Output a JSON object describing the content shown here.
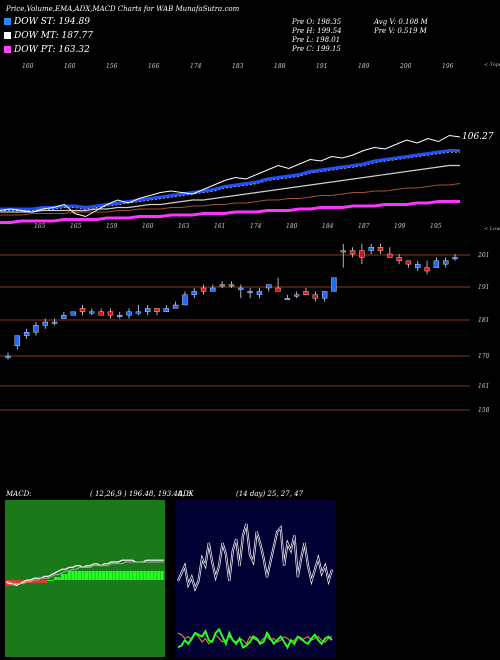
{
  "header": {
    "title": "Price,Volume,EMA,ADX,MACD Charts for WAB MunafaSutra.com",
    "ohlc": {
      "open": "Pre  O: 198.35",
      "high": "Pre  H: 199.54",
      "low": "Pre  L: 198.01",
      "close": "Pre  C: 199.15"
    },
    "avg_volume": "Avg V: 0.108  M",
    "prev_volume": "Pre  V: 0.519 M"
  },
  "legend": [
    {
      "label": "DOW ST: 194.89",
      "color": "#1e90ff"
    },
    {
      "label": "DOW MT: 187.77",
      "color": "#ffffff"
    },
    {
      "label": "DOW PT: 163.32",
      "color": "#ff44ff"
    }
  ],
  "colors": {
    "up": "#1e6cff",
    "down": "#e81010",
    "ema_short": "#1e50ff",
    "ema_long": "#ff33ff",
    "hline": "#8b3a1a",
    "macd_bg": "#1a7a1a",
    "adx_bg": "#000033"
  },
  "chart_data": [
    {
      "type": "line",
      "name": "ema-panel",
      "top_axis_label": "< Tops",
      "bottom_axis_label": "< Lows",
      "last_value_label": "106.27",
      "top_labels": [
        "160",
        "160",
        "156",
        "166",
        "174",
        "183",
        "188",
        "191",
        "189",
        "200",
        "196"
      ],
      "bottom_labels": [
        "165",
        "165",
        "159",
        "160",
        "163",
        "161",
        "174",
        "180",
        "184",
        "187",
        "199",
        "195"
      ],
      "series": [
        {
          "values": [
            178,
            179,
            178,
            177,
            179,
            180,
            182,
            176,
            174,
            178,
            182,
            185,
            183,
            186,
            188,
            190,
            191,
            190,
            189,
            192,
            195,
            198,
            200,
            199,
            202,
            205,
            208,
            206,
            209,
            212,
            211,
            214,
            213,
            215,
            218,
            220,
            219,
            222,
            225,
            223,
            226,
            224,
            228,
            227
          ]
        },
        {
          "values": [
            178,
            178,
            178,
            178,
            179,
            179,
            180,
            180,
            179,
            180,
            181,
            182,
            183,
            184,
            185,
            186,
            187,
            188,
            189,
            190,
            191,
            193,
            194,
            195,
            196,
            198,
            199,
            200,
            201,
            203,
            204,
            205,
            206,
            207,
            208,
            210,
            211,
            212,
            213,
            214,
            215,
            216,
            217,
            217
          ]
        },
        {
          "values": [
            177,
            177,
            177,
            177,
            178,
            178,
            178,
            178,
            178,
            179,
            179,
            180,
            180,
            181,
            182,
            182,
            183,
            184,
            185,
            185,
            186,
            187,
            188,
            189,
            190,
            191,
            192,
            193,
            194,
            195,
            196,
            197,
            198,
            199,
            200,
            201,
            202,
            203,
            204,
            205,
            206,
            207,
            208,
            208
          ]
        },
        {
          "values": [
            175,
            175,
            175,
            176,
            176,
            176,
            176,
            177,
            177,
            177,
            177,
            178,
            178,
            179,
            179,
            179,
            180,
            180,
            181,
            181,
            182,
            182,
            183,
            183,
            184,
            185,
            185,
            186,
            186,
            187,
            188,
            188,
            189,
            190,
            190,
            191,
            191,
            192,
            193,
            193,
            194,
            195,
            195,
            196
          ]
        },
        {
          "values": [
            170,
            170,
            171,
            171,
            171,
            171,
            172,
            172,
            172,
            172,
            173,
            173,
            173,
            174,
            174,
            174,
            175,
            175,
            175,
            176,
            176,
            176,
            177,
            177,
            177,
            178,
            178,
            178,
            179,
            179,
            180,
            180,
            180,
            181,
            181,
            181,
            182,
            182,
            182,
            183,
            183,
            184,
            184,
            184
          ]
        }
      ]
    },
    {
      "type": "candlestick",
      "name": "price-panel",
      "y_tick_labels": [
        "201",
        "191",
        "181",
        "170",
        "161",
        "158"
      ],
      "candles": [
        {
          "o": 170,
          "h": 171,
          "l": 169,
          "c": 170
        },
        {
          "o": 173,
          "h": 176,
          "l": 172,
          "c": 176
        },
        {
          "o": 176,
          "h": 178,
          "l": 175,
          "c": 177
        },
        {
          "o": 177,
          "h": 180,
          "l": 176,
          "c": 179
        },
        {
          "o": 179,
          "h": 181,
          "l": 178,
          "c": 180
        },
        {
          "o": 180,
          "h": 181,
          "l": 179,
          "c": 180
        },
        {
          "o": 181,
          "h": 183,
          "l": 181,
          "c": 182
        },
        {
          "o": 182,
          "h": 183,
          "l": 182,
          "c": 183
        },
        {
          "o": 184,
          "h": 185,
          "l": 182,
          "c": 183
        },
        {
          "o": 183,
          "h": 184,
          "l": 182,
          "c": 183
        },
        {
          "o": 183,
          "h": 184,
          "l": 182,
          "c": 182
        },
        {
          "o": 183,
          "h": 184,
          "l": 181,
          "c": 182
        },
        {
          "o": 182,
          "h": 183,
          "l": 181,
          "c": 182
        },
        {
          "o": 182,
          "h": 184,
          "l": 181,
          "c": 183
        },
        {
          "o": 183,
          "h": 185,
          "l": 182,
          "c": 183
        },
        {
          "o": 183,
          "h": 185,
          "l": 182,
          "c": 184
        },
        {
          "o": 184,
          "h": 184,
          "l": 182,
          "c": 183
        },
        {
          "o": 183,
          "h": 185,
          "l": 183,
          "c": 184
        },
        {
          "o": 184,
          "h": 186,
          "l": 184,
          "c": 185
        },
        {
          "o": 185,
          "h": 189,
          "l": 185,
          "c": 188
        },
        {
          "o": 188,
          "h": 190,
          "l": 187,
          "c": 189
        },
        {
          "o": 190,
          "h": 191,
          "l": 188,
          "c": 189
        },
        {
          "o": 189,
          "h": 191,
          "l": 189,
          "c": 190
        },
        {
          "o": 191,
          "h": 192,
          "l": 190,
          "c": 191
        },
        {
          "o": 191,
          "h": 192,
          "l": 190,
          "c": 191
        },
        {
          "o": 190,
          "h": 191,
          "l": 187,
          "c": 190
        },
        {
          "o": 189,
          "h": 190,
          "l": 187,
          "c": 189
        },
        {
          "o": 188,
          "h": 190,
          "l": 187,
          "c": 189
        },
        {
          "o": 190,
          "h": 191,
          "l": 189,
          "c": 191
        },
        {
          "o": 190,
          "h": 193,
          "l": 189,
          "c": 189
        },
        {
          "o": 187,
          "h": 188,
          "l": 187,
          "c": 187
        },
        {
          "o": 188,
          "h": 189,
          "l": 187,
          "c": 188
        },
        {
          "o": 189,
          "h": 190,
          "l": 188,
          "c": 188
        },
        {
          "o": 188,
          "h": 189,
          "l": 186,
          "c": 187
        },
        {
          "o": 187,
          "h": 189,
          "l": 186,
          "c": 189
        },
        {
          "o": 189,
          "h": 193,
          "l": 189,
          "c": 193
        },
        {
          "o": 201,
          "h": 203,
          "l": 196,
          "c": 201
        },
        {
          "o": 201,
          "h": 202,
          "l": 199,
          "c": 200
        },
        {
          "o": 201,
          "h": 203,
          "l": 197,
          "c": 199
        },
        {
          "o": 201,
          "h": 203,
          "l": 200,
          "c": 202
        },
        {
          "o": 202,
          "h": 203,
          "l": 200,
          "c": 201
        },
        {
          "o": 200,
          "h": 202,
          "l": 199,
          "c": 199
        },
        {
          "o": 199,
          "h": 200,
          "l": 197,
          "c": 198
        },
        {
          "o": 198,
          "h": 198,
          "l": 196,
          "c": 197
        },
        {
          "o": 196,
          "h": 198,
          "l": 195,
          "c": 197
        },
        {
          "o": 196,
          "h": 198,
          "l": 194,
          "c": 195
        },
        {
          "o": 196,
          "h": 199,
          "l": 196,
          "c": 198
        },
        {
          "o": 197,
          "h": 199,
          "l": 196,
          "c": 198
        },
        {
          "o": 199,
          "h": 200,
          "l": 198,
          "c": 199
        }
      ]
    },
    {
      "type": "bar",
      "name": "macd-panel",
      "label": "MACD:",
      "values_text": "( 12,26,9 ) 196.48, 193.48, 3",
      "histogram": [
        -2,
        -2,
        -2,
        -1,
        -1,
        -1,
        -1,
        -1,
        -1,
        -1,
        -1,
        -1,
        0,
        0,
        1,
        1,
        2,
        2,
        3,
        3,
        3,
        3,
        3,
        3,
        3,
        3,
        3,
        3,
        3,
        3,
        3,
        3,
        3,
        3,
        3,
        3,
        3,
        3,
        3,
        3,
        3,
        3,
        3,
        3,
        3,
        3
      ],
      "series": [
        {
          "values": [
            -1,
            -2,
            -2,
            -3,
            -2,
            -1,
            0,
            0,
            1,
            1,
            1,
            2,
            2,
            3,
            4,
            5,
            6,
            6,
            7,
            7,
            8,
            8,
            7,
            8,
            8,
            9,
            9,
            8,
            9,
            9,
            10,
            10,
            10,
            11,
            11,
            11,
            11,
            10,
            10,
            10,
            11,
            11,
            11,
            11,
            11,
            11
          ]
        },
        {
          "values": [
            -1,
            -1,
            -2,
            -2,
            -2,
            -2,
            -1,
            -1,
            0,
            0,
            1,
            1,
            1,
            2,
            3,
            3,
            4,
            5,
            5,
            6,
            6,
            7,
            7,
            7,
            7,
            8,
            8,
            8,
            8,
            8,
            9,
            9,
            9,
            9,
            10,
            10,
            10,
            10,
            10,
            10,
            10,
            10,
            10,
            10,
            10,
            10
          ]
        }
      ]
    },
    {
      "type": "line",
      "name": "adx-panel",
      "label": "ADX",
      "values_text": "(14  day) 25,  27,  47",
      "series": [
        {
          "values": [
            10,
            14,
            18,
            8,
            12,
            6,
            10,
            22,
            18,
            30,
            20,
            12,
            18,
            30,
            24,
            10,
            26,
            32,
            18,
            34,
            40,
            24,
            20,
            36,
            30,
            22,
            12,
            20,
            28,
            36,
            38,
            18,
            30,
            26,
            34,
            12,
            22,
            30,
            18,
            10,
            16,
            22,
            14,
            18,
            10,
            16
          ]
        },
        {
          "values": [
            30,
            28,
            24,
            26,
            22,
            30,
            26,
            20,
            24,
            18,
            22,
            28,
            24,
            20,
            22,
            26,
            22,
            20,
            24,
            22,
            18,
            26,
            24,
            22,
            20,
            24,
            26,
            22,
            24,
            20,
            22,
            26,
            24,
            20,
            22,
            26,
            22,
            24,
            26,
            22,
            24,
            26,
            22,
            20,
            24,
            26
          ]
        },
        {
          "values": [
            14,
            16,
            22,
            18,
            24,
            30,
            28,
            26,
            32,
            22,
            20,
            30,
            34,
            26,
            18,
            30,
            22,
            18,
            24,
            14,
            16,
            20,
            26,
            24,
            18,
            20,
            30,
            24,
            18,
            22,
            26,
            20,
            14,
            22,
            18,
            26,
            24,
            20,
            18,
            24,
            28,
            22,
            18,
            24,
            26,
            22
          ]
        }
      ]
    }
  ]
}
